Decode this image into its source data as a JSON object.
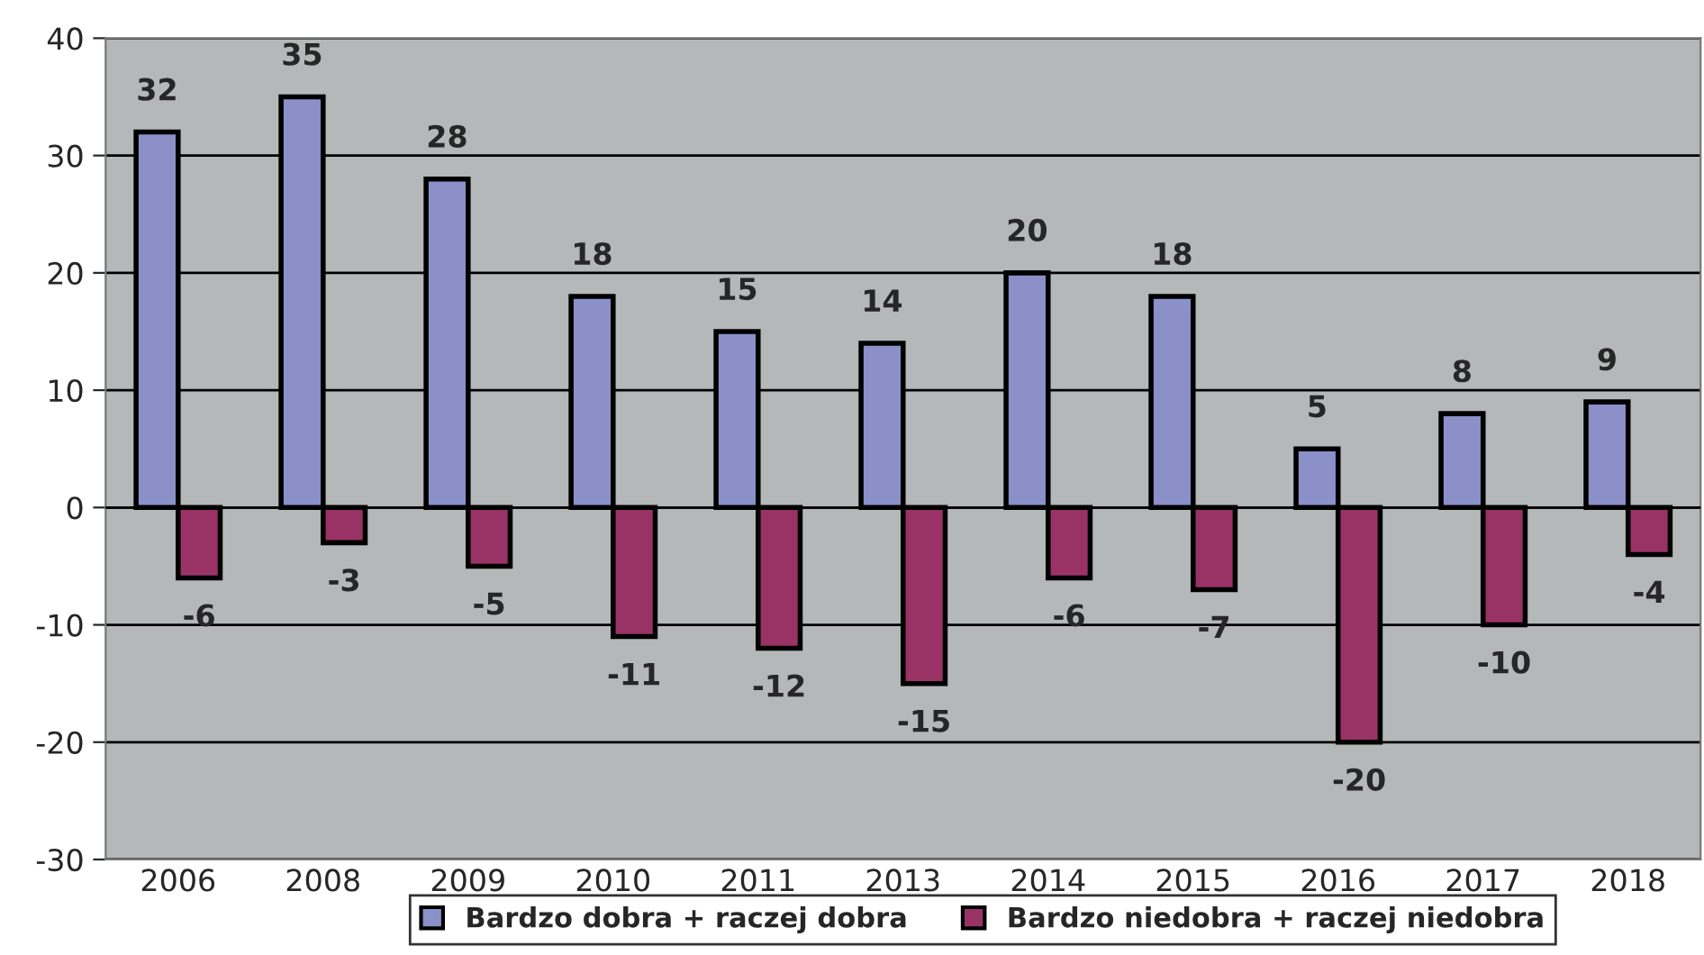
{
  "chart_data": {
    "type": "bar",
    "categories": [
      "2006",
      "2008",
      "2009",
      "2010",
      "2011",
      "2013",
      "2014",
      "2015",
      "2016",
      "2017",
      "2018"
    ],
    "series": [
      {
        "name": "Bardzo dobra + raczej dobra",
        "color": "#8b91c8",
        "values": [
          32,
          35,
          28,
          18,
          15,
          14,
          20,
          18,
          5,
          8,
          9
        ]
      },
      {
        "name": "Bardzo niedobra + raczej niedobra",
        "color": "#993366",
        "values": [
          -6,
          -3,
          -5,
          -11,
          -12,
          -15,
          -6,
          -7,
          -20,
          -10,
          -4
        ]
      }
    ],
    "ylim": [
      -30,
      40
    ],
    "yticks": [
      -30,
      -20,
      -10,
      0,
      10,
      20,
      30,
      40
    ],
    "grid": "y",
    "legend": "bottom",
    "data_labels": true
  }
}
